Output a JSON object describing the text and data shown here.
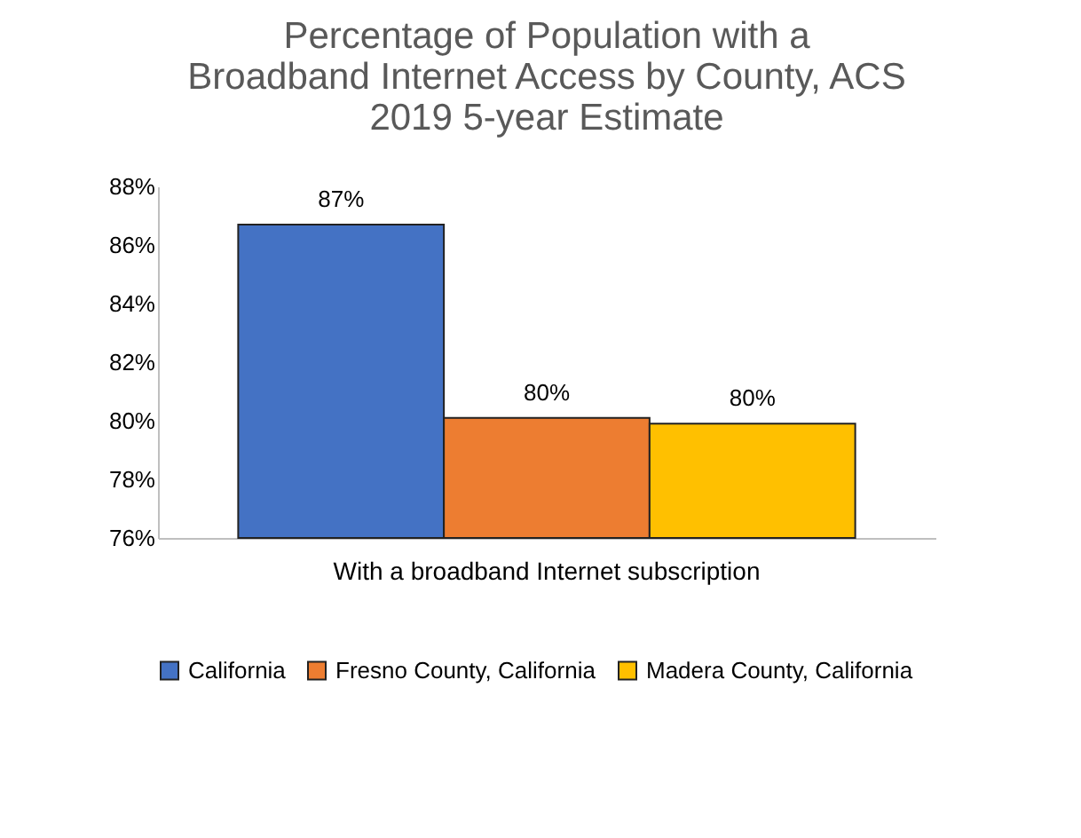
{
  "chart_data": {
    "type": "bar",
    "title": "Percentage of Population with a Broadband Internet Access by County, ACS 2019 5-year Estimate",
    "categories": [
      "With a broadband Internet subscription"
    ],
    "series": [
      {
        "name": "California",
        "color": "#4472c4",
        "values": [
          86.7
        ],
        "value_labels": [
          "87%"
        ]
      },
      {
        "name": "Fresno County, California",
        "color": "#ed7d31",
        "values": [
          80.1
        ],
        "value_labels": [
          "80%"
        ]
      },
      {
        "name": "Madera County, California",
        "color": "#ffc000",
        "values": [
          79.9
        ],
        "value_labels": [
          "80%"
        ]
      }
    ],
    "ylim": [
      76,
      88
    ],
    "yticks": [
      {
        "value": 76,
        "label": "76%"
      },
      {
        "value": 78,
        "label": "78%"
      },
      {
        "value": 80,
        "label": "80%"
      },
      {
        "value": 82,
        "label": "82%"
      },
      {
        "value": 84,
        "label": "84%"
      },
      {
        "value": 86,
        "label": "86%"
      },
      {
        "value": 88,
        "label": "88%"
      }
    ],
    "grid": false,
    "legend": "bottom"
  }
}
